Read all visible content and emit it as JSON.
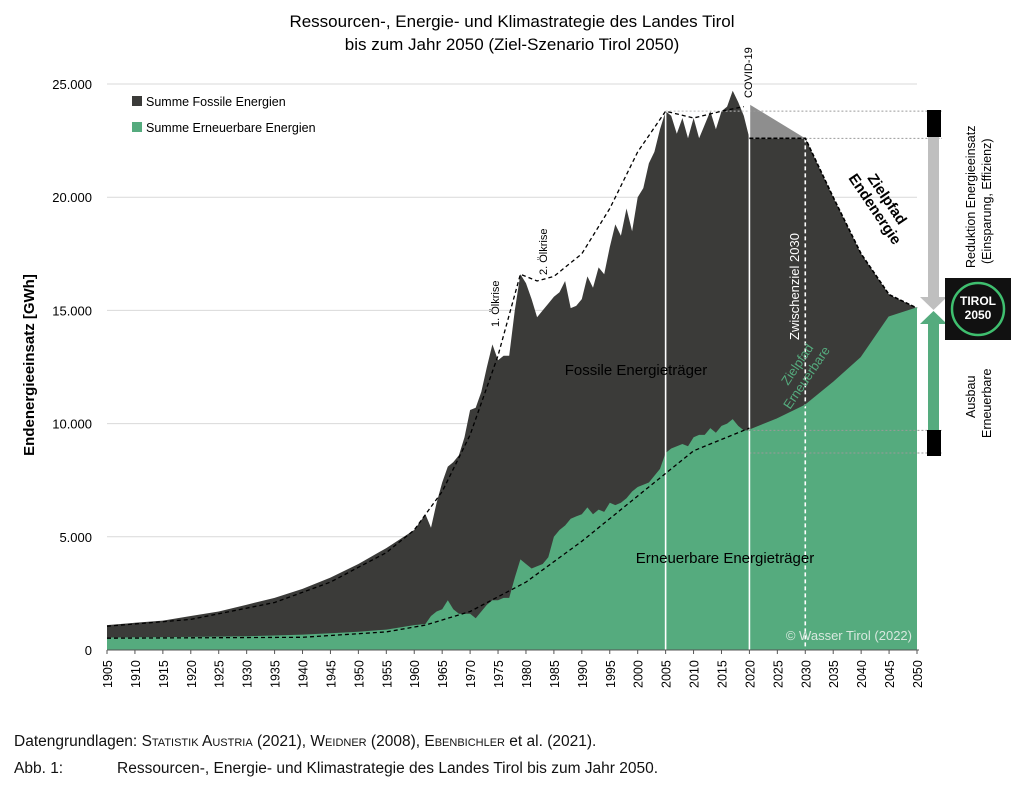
{
  "chart_data": {
    "type": "area",
    "title": "Ressourcen-, Energie- und Klimastrategie des Landes Tirol",
    "subtitle": "bis zum Jahr 2050 (Ziel-Szenario Tirol 2050)",
    "ylabel": "Endenergieeinsatz [GWh]",
    "xlabel": "",
    "xlim": [
      1905,
      2050
    ],
    "ylim": [
      0,
      25000
    ],
    "ytick_labels": [
      "0",
      "5.000",
      "10.000",
      "15.000",
      "20.000",
      "25.000"
    ],
    "ytick_values": [
      0,
      5000,
      10000,
      15000,
      20000,
      25000
    ],
    "xtick_values": [
      1905,
      1910,
      1915,
      1920,
      1925,
      1930,
      1935,
      1940,
      1945,
      1950,
      1955,
      1960,
      1965,
      1970,
      1975,
      1980,
      1985,
      1990,
      1995,
      2000,
      2005,
      2010,
      2015,
      2020,
      2025,
      2030,
      2035,
      2040,
      2045,
      2050
    ],
    "grid": true,
    "legend_position": "top-left",
    "series": [
      {
        "name": "Summe Fossile Energien",
        "color": "#3b3b39",
        "x": [
          1905,
          1910,
          1915,
          1920,
          1925,
          1930,
          1935,
          1940,
          1945,
          1950,
          1955,
          1960,
          1962,
          1963,
          1964,
          1965,
          1966,
          1967,
          1968,
          1969,
          1970,
          1971,
          1972,
          1973,
          1974,
          1975,
          1976,
          1977,
          1978,
          1979,
          1980,
          1981,
          1982,
          1983,
          1984,
          1985,
          1986,
          1987,
          1988,
          1989,
          1990,
          1991,
          1992,
          1993,
          1994,
          1995,
          1996,
          1997,
          1998,
          1999,
          2000,
          2001,
          2002,
          2003,
          2004,
          2005,
          2006,
          2007,
          2008,
          2009,
          2010,
          2011,
          2012,
          2013,
          2014,
          2015,
          2016,
          2017,
          2018,
          2019,
          2020,
          2025,
          2030,
          2035,
          2040,
          2045,
          2050
        ],
        "values": [
          1100,
          1200,
          1300,
          1500,
          1700,
          2000,
          2300,
          2700,
          3200,
          3800,
          4500,
          5300,
          6000,
          5400,
          6500,
          7400,
          8100,
          8300,
          8600,
          9400,
          10600,
          10700,
          11400,
          12500,
          13500,
          12800,
          13000,
          13000,
          15000,
          16600,
          16200,
          15500,
          14700,
          15000,
          15300,
          15600,
          15800,
          16300,
          15100,
          15200,
          15500,
          16500,
          16000,
          16900,
          16600,
          17800,
          18800,
          18300,
          19500,
          18500,
          20000,
          20400,
          21500,
          22000,
          23000,
          23800,
          23600,
          22800,
          23500,
          22600,
          23500,
          22600,
          23200,
          23800,
          23000,
          23800,
          24000,
          24700,
          24200,
          23600,
          22600,
          22600,
          22600,
          20000,
          17500,
          15700,
          15100
        ]
      },
      {
        "name": "Summe Erneuerbare Energien",
        "color": "#55ab7e",
        "x": [
          1905,
          1910,
          1915,
          1920,
          1925,
          1930,
          1935,
          1940,
          1945,
          1950,
          1955,
          1960,
          1962,
          1963,
          1964,
          1965,
          1966,
          1967,
          1968,
          1969,
          1970,
          1971,
          1972,
          1973,
          1974,
          1975,
          1976,
          1977,
          1978,
          1979,
          1980,
          1981,
          1982,
          1983,
          1984,
          1985,
          1986,
          1987,
          1988,
          1989,
          1990,
          1991,
          1992,
          1993,
          1994,
          1995,
          1996,
          1997,
          1998,
          1999,
          2000,
          2001,
          2002,
          2003,
          2004,
          2005,
          2006,
          2007,
          2008,
          2009,
          2010,
          2011,
          2012,
          2013,
          2014,
          2015,
          2016,
          2017,
          2018,
          2019,
          2020,
          2025,
          2030,
          2035,
          2040,
          2045,
          2050
        ],
        "values": [
          550,
          560,
          570,
          580,
          590,
          610,
          640,
          680,
          740,
          810,
          900,
          1100,
          1150,
          1500,
          1700,
          1800,
          2200,
          1800,
          1600,
          1600,
          1600,
          1400,
          1700,
          2000,
          2200,
          2200,
          2300,
          2300,
          3200,
          4000,
          3800,
          3600,
          3700,
          3800,
          4100,
          5000,
          5300,
          5500,
          5800,
          5900,
          6000,
          6300,
          6000,
          6200,
          6100,
          6500,
          6400,
          6500,
          6700,
          7000,
          7200,
          7300,
          7400,
          7700,
          8000,
          8700,
          8900,
          9000,
          9100,
          9000,
          9400,
          9500,
          9500,
          9800,
          9600,
          9900,
          10000,
          10200,
          9900,
          9700,
          9700,
          10200,
          10800,
          11800,
          12900,
          14700,
          15100
        ]
      }
    ],
    "trend_lines": [
      {
        "name": "Zielpfad Endenergie",
        "x": [
          2020,
          2025,
          2030,
          2035,
          2040,
          2045,
          2050
        ],
        "y": [
          22600,
          22600,
          22600,
          20000,
          17500,
          15700,
          15100
        ]
      },
      {
        "name": "Zielpfad Erneuerbare",
        "x": [
          2020,
          2025,
          2030,
          2035,
          2040,
          2045,
          2050
        ],
        "y": [
          9700,
          10200,
          10800,
          11800,
          12900,
          14700,
          15100
        ]
      }
    ],
    "vertical_markers": [
      {
        "x": 2005,
        "style": "solid"
      },
      {
        "x": 2020,
        "style": "solid",
        "label": "COVID-19"
      },
      {
        "x": 2030,
        "style": "dashed",
        "label": "Zwischenziel 2030"
      }
    ],
    "annotations": {
      "oelkrise_1": "1. Ölkrise",
      "oelkrise_2": "2. Ölkrise",
      "covid": "COVID-19",
      "zwischenziel": "Zwischenziel 2030",
      "fossil_area": "Fossile Energieträger",
      "renewable_area": "Erneuerbare Energieträger",
      "zielpfad_endenergie_line1": "Zielpfad",
      "zielpfad_endenergie_line2": "Endenergie",
      "zielpfad_erneuerbare_line1": "Zielpfad",
      "zielpfad_erneuerbare_line2": "Erneuerbare",
      "reduktion_line1": "Reduktion Energieeinsatz",
      "reduktion_line2": "(Einsparung, Effizienz)",
      "ausbau_line1": "Ausbau",
      "ausbau_line2": "Erneuerbare",
      "copyright": "© Wasser Tirol (2022)",
      "logo_line1": "TIROL",
      "logo_line2": "2050"
    }
  },
  "caption": {
    "sources_prefix": "Datengrundlagen:",
    "source1": "Statistik Austria",
    "source1_year": " (2021), ",
    "source2": "Weidner",
    "source2_year": " (2008), ",
    "source3": "Ebenbichler",
    "source3_rest": " et al. (2021).",
    "figure_label": "Abb. 1:",
    "figure_text": "Ressourcen-, Energie- und Klimastrategie des Landes Tirol bis zum Jahr 2050."
  }
}
